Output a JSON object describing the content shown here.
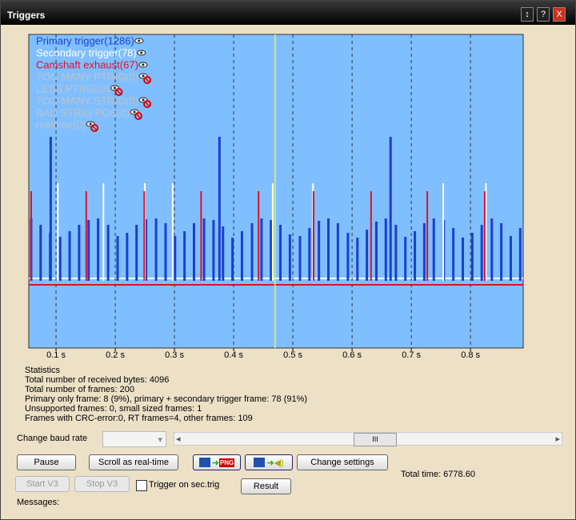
{
  "window": {
    "title": "Triggers",
    "help": "?",
    "close": "X"
  },
  "chart_data": {
    "type": "events",
    "xlim": [
      0.054,
      0.889
    ],
    "ylim": [
      -84,
      308
    ],
    "xticks": [
      {
        "value": 0.1,
        "label": "0.1 s"
      },
      {
        "value": 0.2,
        "label": "0.2 s"
      },
      {
        "value": 0.3,
        "label": "0.3 s"
      },
      {
        "value": 0.4,
        "label": "0.4 s"
      },
      {
        "value": 0.5,
        "label": "0.5 s"
      },
      {
        "value": 0.6,
        "label": "0.6 s"
      },
      {
        "value": 0.7,
        "label": "0.7 s"
      },
      {
        "value": 0.8,
        "label": "0.8 s"
      }
    ],
    "grid": true,
    "cursor": 0.47,
    "series": [
      {
        "name": "Primary trigger(1286)",
        "color": "#1a3fd0",
        "x": [
          0.058,
          0.074,
          0.09,
          0.107,
          0.123,
          0.139,
          0.155,
          0.171,
          0.188,
          0.204,
          0.22,
          0.236,
          0.252,
          0.269,
          0.285,
          0.301,
          0.317,
          0.333,
          0.35,
          0.366,
          0.382,
          0.398,
          0.414,
          0.431,
          0.447,
          0.463,
          0.479,
          0.495,
          0.512,
          0.528,
          0.544,
          0.56,
          0.576,
          0.593,
          0.609,
          0.625,
          0.641,
          0.657,
          0.674,
          0.69,
          0.706,
          0.722,
          0.738,
          0.755,
          0.771,
          0.787,
          0.803,
          0.819,
          0.836,
          0.852,
          0.868,
          0.884,
          0.091,
          0.376,
          0.665
        ],
        "values": [
          78,
          70,
          60,
          55,
          62,
          70,
          76,
          78,
          70,
          56,
          60,
          70,
          77,
          78,
          72,
          56,
          62,
          72,
          78,
          76,
          68,
          54,
          62,
          72,
          78,
          76,
          70,
          58,
          56,
          66,
          75,
          78,
          72,
          60,
          54,
          64,
          74,
          78,
          70,
          55,
          62,
          72,
          78,
          76,
          66,
          54,
          60,
          70,
          78,
          72,
          56,
          66,
          180,
          180,
          180
        ]
      },
      {
        "name": "Secondary trigger(78)",
        "color": "#ffffff",
        "x": [
          0.103,
          0.18,
          0.25,
          0.297,
          0.466,
          0.534,
          0.754,
          0.826
        ],
        "values": [
          122,
          122,
          122,
          122,
          122,
          122,
          122,
          122
        ]
      },
      {
        "name": "Camshaft exhaust(67)",
        "color": "#e0102a",
        "x": [
          0.058,
          0.151,
          0.249,
          0.345,
          0.442,
          0.535,
          0.632,
          0.727,
          0.824
        ],
        "values": [
          112,
          112,
          112,
          112,
          112,
          112,
          112,
          112,
          112
        ]
      }
    ],
    "disabled_entries": [
      "TOO MANY PTRIG(0)",
      "LESS PTRIG(0)",
      "TOO MANY STRIG(0)",
      "BAD STRIG POS(0)",
      "realtime(0)"
    ]
  },
  "statistics": {
    "heading": "Statistics",
    "lines": [
      "Total number of received bytes: 4096",
      "Total number of frames: 200",
      "Primary only frame: 8 (9%), primary + secondary trigger frame: 78 (91%)",
      "Unsupported frames: 0, small sized frames: 1",
      "Frames with CRC-error:0, RT frames=4, other frames: 109"
    ]
  },
  "controls": {
    "baud_label": "Change baud rate",
    "pause": "Pause",
    "scroll": "Scroll as real-time",
    "png": "PNG",
    "change_settings": "Change settings",
    "start": "Start V3",
    "stop": "Stop V3",
    "trigger_sec": "Trigger on sec.trig",
    "result": "Result",
    "total_time": "Total time: 6778.60",
    "messages": "Messages:",
    "scroll_thumb": "III"
  }
}
